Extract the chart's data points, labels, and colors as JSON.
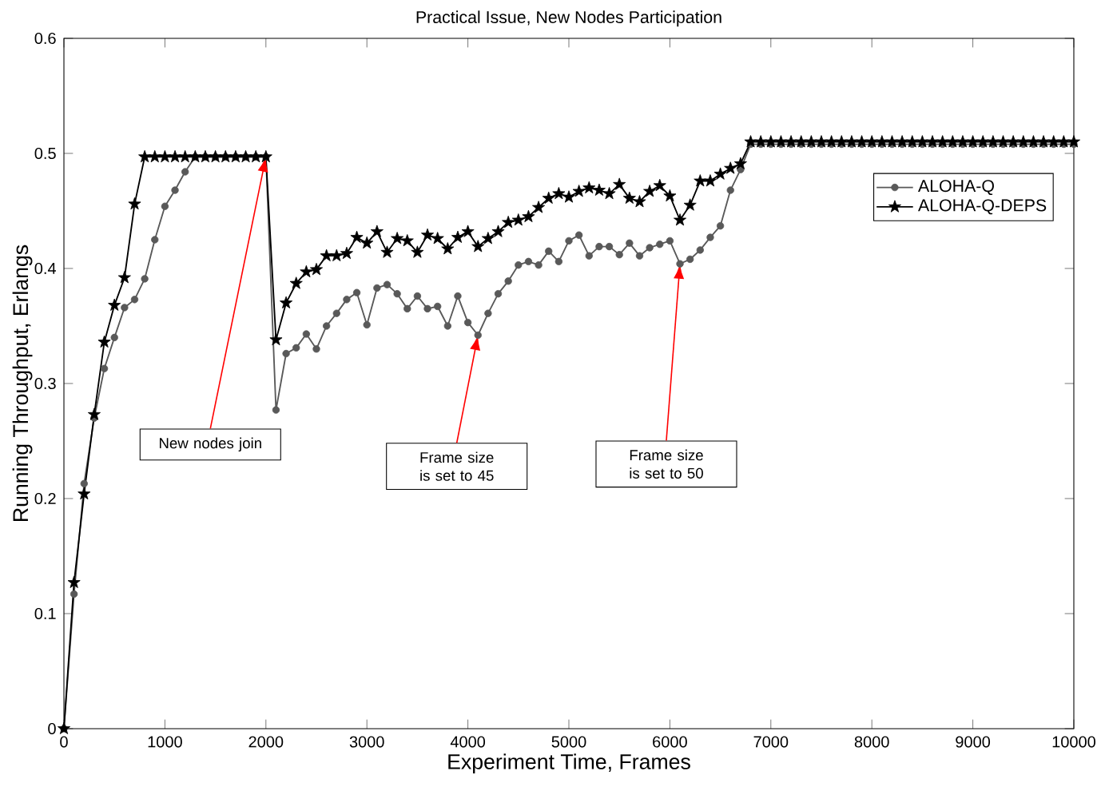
{
  "chart_data": {
    "type": "line",
    "title": "Practical Issue, New Nodes Participation",
    "xlabel": "Experiment Time, Frames",
    "ylabel": "Running Throughput, Erlangs",
    "x": [
      0,
      100,
      200,
      300,
      400,
      500,
      600,
      700,
      800,
      900,
      1000,
      1100,
      1200,
      1300,
      1400,
      1500,
      1600,
      1700,
      1800,
      1900,
      2000,
      2100,
      2200,
      2300,
      2400,
      2500,
      2600,
      2700,
      2800,
      2900,
      3000,
      3100,
      3200,
      3300,
      3400,
      3500,
      3600,
      3700,
      3800,
      3900,
      4000,
      4100,
      4200,
      4300,
      4400,
      4500,
      4600,
      4700,
      4800,
      4900,
      5000,
      5100,
      5200,
      5300,
      5400,
      5500,
      5600,
      5700,
      5800,
      5900,
      6000,
      6100,
      6200,
      6300,
      6400,
      6500,
      6600,
      6700,
      6800,
      6900,
      7000,
      7100,
      7200,
      7300,
      7400,
      7500,
      7600,
      7700,
      7800,
      7900,
      8000,
      8100,
      8200,
      8300,
      8400,
      8500,
      8600,
      8700,
      8800,
      8900,
      9000,
      9100,
      9200,
      9300,
      9400,
      9500,
      9600,
      9700,
      9800,
      9900,
      10000
    ],
    "series": [
      {
        "name": "ALOHA-Q",
        "color": "#595959",
        "marker": "circle",
        "values": [
          0,
          0.117,
          0.213,
          0.27,
          0.313,
          0.34,
          0.366,
          0.373,
          0.391,
          0.425,
          0.454,
          0.468,
          0.484,
          0.497,
          0.497,
          0.497,
          0.497,
          0.497,
          0.497,
          0.497,
          0.497,
          0.277,
          0.326,
          0.331,
          0.343,
          0.33,
          0.35,
          0.361,
          0.373,
          0.379,
          0.351,
          0.383,
          0.386,
          0.378,
          0.365,
          0.376,
          0.365,
          0.367,
          0.35,
          0.376,
          0.353,
          0.342,
          0.361,
          0.378,
          0.389,
          0.403,
          0.406,
          0.403,
          0.415,
          0.406,
          0.424,
          0.429,
          0.411,
          0.419,
          0.419,
          0.412,
          0.422,
          0.411,
          0.418,
          0.421,
          0.424,
          0.404,
          0.408,
          0.416,
          0.427,
          0.437,
          0.468,
          0.486,
          0.508,
          0.508,
          0.508,
          0.508,
          0.508,
          0.508,
          0.508,
          0.508,
          0.508,
          0.508,
          0.508,
          0.508,
          0.508,
          0.508,
          0.508,
          0.508,
          0.508,
          0.508,
          0.508,
          0.508,
          0.508,
          0.508,
          0.508,
          0.508,
          0.508,
          0.508,
          0.508,
          0.508,
          0.508,
          0.508,
          0.508,
          0.508,
          0.508
        ]
      },
      {
        "name": "ALOHA-Q-DEPS",
        "color": "#000000",
        "marker": "star",
        "values": [
          0,
          0.127,
          0.204,
          0.273,
          0.336,
          0.368,
          0.392,
          0.456,
          0.497,
          0.497,
          0.497,
          0.497,
          0.497,
          0.497,
          0.497,
          0.497,
          0.497,
          0.497,
          0.497,
          0.497,
          0.497,
          0.338,
          0.37,
          0.387,
          0.397,
          0.399,
          0.411,
          0.411,
          0.413,
          0.427,
          0.422,
          0.432,
          0.414,
          0.426,
          0.424,
          0.414,
          0.429,
          0.426,
          0.417,
          0.427,
          0.432,
          0.419,
          0.426,
          0.432,
          0.44,
          0.442,
          0.445,
          0.453,
          0.461,
          0.465,
          0.462,
          0.467,
          0.47,
          0.468,
          0.465,
          0.473,
          0.461,
          0.458,
          0.467,
          0.472,
          0.463,
          0.442,
          0.455,
          0.476,
          0.476,
          0.482,
          0.487,
          0.491,
          0.51,
          0.51,
          0.51,
          0.51,
          0.51,
          0.51,
          0.51,
          0.51,
          0.51,
          0.51,
          0.51,
          0.51,
          0.51,
          0.51,
          0.51,
          0.51,
          0.51,
          0.51,
          0.51,
          0.51,
          0.51,
          0.51,
          0.51,
          0.51,
          0.51,
          0.51,
          0.51,
          0.51,
          0.51,
          0.51,
          0.51,
          0.51,
          0.51
        ]
      }
    ],
    "xlim": [
      0,
      10000
    ],
    "xticks": [
      0,
      1000,
      2000,
      3000,
      4000,
      5000,
      6000,
      7000,
      8000,
      9000,
      10000
    ],
    "ylim": [
      0,
      0.6
    ],
    "yticks": [
      0,
      0.1,
      0.2,
      0.3,
      0.4,
      0.5,
      0.6
    ],
    "legend": "right",
    "grid": false,
    "line_style": "solid",
    "annotations": [
      {
        "text": "New nodes join",
        "x": 2000,
        "y": 0.497
      },
      {
        "text": "Frame size is set to 45",
        "x": 4100,
        "y": 0.342
      },
      {
        "text": "Frame size is set to 50",
        "x": 6100,
        "y": 0.404
      }
    ]
  }
}
